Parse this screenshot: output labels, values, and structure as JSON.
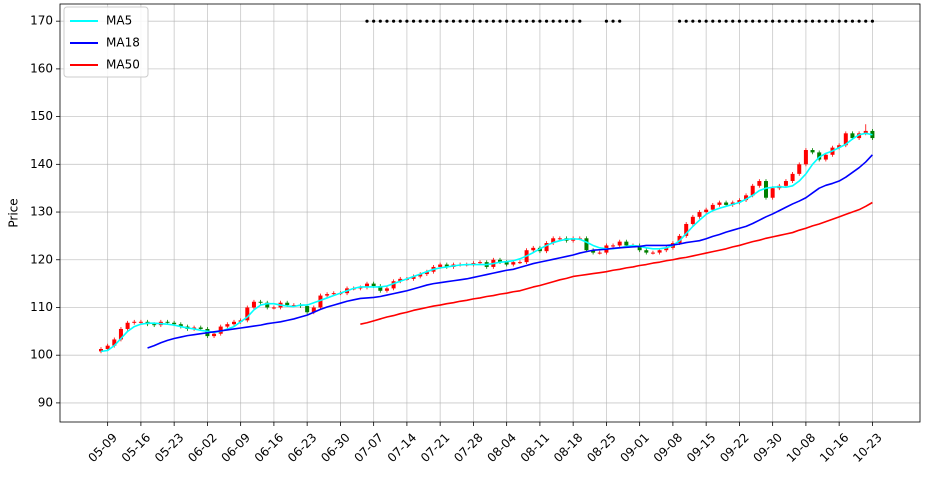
{
  "chart_data": {
    "type": "candlestick",
    "ylabel": "Price",
    "ylim": [
      86,
      173.6
    ],
    "yticks": [
      90,
      100,
      110,
      120,
      130,
      140,
      150,
      160,
      170
    ],
    "grid": true,
    "legend": "upper left",
    "up_color": "#ff0000",
    "down_color": "#008000",
    "categories": [
      null,
      "05-09",
      null,
      null,
      null,
      null,
      "05-16",
      null,
      null,
      null,
      null,
      "05-23",
      null,
      null,
      null,
      null,
      "06-02",
      null,
      null,
      null,
      null,
      "06-09",
      null,
      null,
      null,
      null,
      "06-16",
      null,
      null,
      null,
      null,
      "06-23",
      null,
      null,
      null,
      null,
      "06-30",
      null,
      null,
      null,
      null,
      "07-07",
      null,
      null,
      null,
      null,
      "07-14",
      null,
      null,
      null,
      null,
      "07-21",
      null,
      null,
      null,
      null,
      "07-28",
      null,
      null,
      null,
      null,
      "08-04",
      null,
      null,
      null,
      null,
      "08-11",
      null,
      null,
      null,
      null,
      "08-18",
      null,
      null,
      null,
      null,
      "08-25",
      null,
      null,
      null,
      null,
      "09-01",
      null,
      null,
      null,
      null,
      "09-08",
      null,
      null,
      null,
      null,
      "09-15",
      null,
      null,
      null,
      null,
      "09-22",
      null,
      null,
      null,
      null,
      "09-30",
      null,
      null,
      null,
      null,
      "10-08",
      null,
      null,
      null,
      null,
      "10-16",
      null,
      null,
      null,
      null,
      "10-23"
    ],
    "open": [
      100.8,
      101.3,
      102,
      103.3,
      105.5,
      106.8,
      107,
      107,
      106.5,
      106.3,
      107,
      106.8,
      106.5,
      106,
      105.5,
      105.8,
      105.5,
      104,
      104.5,
      106,
      106.5,
      107,
      107.3,
      110,
      111.2,
      111,
      110,
      110,
      111,
      110.5,
      110.5,
      110.3,
      109,
      110,
      112.5,
      112.8,
      113,
      113,
      114,
      114,
      114.2,
      115,
      114.5,
      113.5,
      114,
      115.5,
      116,
      116,
      116.5,
      117,
      117.5,
      118.5,
      119,
      118.5,
      119,
      119,
      119,
      119.3,
      119.5,
      118.5,
      120,
      119.5,
      119,
      119.5,
      119.5,
      122,
      122.5,
      121.8,
      123.5,
      124.5,
      124.5,
      124,
      124.5,
      124.5,
      122,
      121.5,
      121.5,
      123,
      123,
      123.8,
      123,
      123,
      122,
      121.5,
      121.5,
      122,
      122.5,
      123.5,
      125,
      127.5,
      129,
      130,
      130.5,
      131.5,
      132,
      131.5,
      132,
      132.5,
      133.5,
      135.5,
      136.5,
      133,
      135,
      135.5,
      136.5,
      138,
      140,
      143,
      142.5,
      141,
      142,
      143.5,
      144,
      146.5,
      145.5,
      146.5,
      147
    ],
    "high": [
      101.7,
      102.4,
      103.7,
      105.9,
      107.2,
      107.4,
      107.4,
      107.4,
      106.9,
      107.4,
      107.4,
      107.2,
      106.9,
      106.4,
      106.2,
      106.2,
      105.9,
      104.9,
      106.4,
      106.9,
      107.4,
      107.7,
      110.4,
      111.6,
      111.6,
      111.4,
      110.4,
      111.4,
      111.4,
      110.9,
      110.9,
      110.7,
      110.4,
      112.9,
      113.2,
      113.4,
      113.4,
      114.4,
      114.4,
      114.6,
      115.4,
      115.4,
      114.9,
      114.4,
      115.9,
      116.4,
      116.4,
      116.9,
      117.4,
      117.9,
      118.9,
      119.4,
      119.4,
      119.4,
      119.4,
      119.4,
      119.7,
      119.9,
      119.9,
      120.4,
      120.4,
      119.9,
      119.9,
      119.9,
      122.4,
      122.9,
      122.9,
      123.9,
      124.9,
      124.9,
      124.9,
      124.9,
      124.9,
      124.9,
      122.4,
      121.9,
      123.4,
      123.4,
      124.2,
      124.2,
      123.4,
      123.4,
      122.4,
      121.9,
      122.4,
      122.9,
      123.9,
      125.4,
      127.9,
      129.4,
      130.4,
      130.9,
      131.9,
      132.4,
      132.4,
      132.4,
      132.9,
      133.9,
      135.9,
      136.9,
      136.9,
      135.4,
      135.9,
      136.9,
      138.4,
      140.4,
      143.4,
      143.4,
      142.9,
      142.4,
      143.9,
      144.4,
      146.9,
      146.9,
      146.9,
      148.4,
      147.4
    ],
    "low": [
      100.4,
      100.9,
      101.6,
      102.9,
      105.1,
      106.4,
      106.6,
      106.1,
      105.9,
      105.9,
      106.4,
      106.1,
      105.6,
      105.1,
      105.1,
      105.1,
      103.6,
      103.6,
      104.1,
      105.6,
      106.1,
      106.6,
      106.9,
      109.6,
      110.6,
      109.6,
      109.6,
      109.6,
      110.1,
      110.1,
      109.9,
      108.6,
      108.6,
      109.6,
      112.1,
      112.4,
      112.6,
      112.6,
      113.6,
      113.6,
      113.8,
      114.1,
      113.1,
      113.1,
      113.6,
      115.1,
      115.6,
      115.6,
      116.1,
      116.6,
      117.1,
      118.1,
      118.1,
      118.1,
      118.6,
      118.6,
      118.6,
      118.9,
      118.1,
      118.1,
      119.1,
      118.6,
      118.6,
      119.1,
      119.1,
      121.6,
      121.4,
      121.4,
      123.1,
      124.1,
      123.6,
      123.6,
      124.1,
      121.6,
      121.1,
      121.1,
      121.1,
      122.6,
      122.6,
      122.6,
      122.6,
      121.6,
      121.1,
      121.1,
      121.1,
      121.6,
      122.1,
      123.1,
      124.6,
      127.1,
      128.6,
      129.6,
      130.1,
      131.1,
      131.1,
      131.1,
      131.6,
      132.1,
      133.1,
      135.1,
      132.6,
      132.6,
      134.6,
      135.1,
      136.1,
      137.6,
      139.6,
      142.1,
      140.6,
      140.6,
      141.6,
      143.1,
      143.6,
      145.1,
      145.1,
      146.1,
      145.1
    ],
    "close": [
      101.3,
      102,
      103.3,
      105.5,
      106.8,
      107,
      107,
      106.5,
      106.3,
      107,
      106.8,
      106.5,
      106,
      105.5,
      105.8,
      105.5,
      104,
      104.5,
      106,
      106.5,
      107,
      107.3,
      110,
      111.2,
      111,
      110,
      110,
      111,
      110.5,
      110.5,
      110.3,
      109,
      110,
      112.5,
      112.8,
      113,
      113,
      114,
      114,
      114.2,
      115,
      114.5,
      113.5,
      114,
      115.5,
      116,
      116,
      116.5,
      117,
      117.5,
      118.5,
      119,
      118.5,
      119,
      119,
      119,
      119.3,
      119.5,
      118.5,
      120,
      119.5,
      119,
      119.5,
      119.5,
      122,
      122.5,
      121.8,
      123.5,
      124.5,
      124.5,
      124,
      124.5,
      124.5,
      122,
      121.5,
      121.5,
      123,
      123,
      123.8,
      123,
      123,
      122,
      121.5,
      121.5,
      122,
      122.5,
      123.5,
      125,
      127.5,
      129,
      130,
      130.5,
      131.5,
      132,
      131.5,
      132,
      132.5,
      133.5,
      135.5,
      136.5,
      133,
      135,
      135.5,
      136.5,
      138,
      140,
      143,
      142.5,
      141,
      142,
      143.5,
      144,
      146.5,
      145.5,
      146.5,
      147,
      145.5
    ],
    "series": [
      {
        "name": "MA5",
        "color": "#00ffff",
        "values": [
          100.8,
          101,
          102,
          103.5,
          105,
          106,
          106.5,
          106.7,
          106.7,
          106.6,
          106.5,
          106.3,
          106,
          105.7,
          105.5,
          105.2,
          105,
          104.8,
          105,
          105.5,
          106,
          107,
          108,
          109.5,
          110.5,
          110.8,
          110.8,
          110.5,
          110.3,
          110.2,
          110.5,
          110.5,
          111,
          111.5,
          112,
          112.5,
          113,
          113.5,
          114,
          114.3,
          114.3,
          114.3,
          114.3,
          114.5,
          115,
          115.5,
          116,
          116.5,
          117,
          117.5,
          118,
          118.3,
          118.5,
          118.7,
          118.9,
          119,
          119,
          119,
          119,
          119.2,
          119.5,
          119.6,
          119.8,
          120.2,
          120.8,
          121.5,
          122.3,
          123,
          123.6,
          124,
          124.3,
          124.4,
          124.3,
          123.7,
          123,
          122.5,
          122.3,
          122.3,
          122.5,
          122.8,
          123,
          122.8,
          122.5,
          122.3,
          122.3,
          122.5,
          123,
          124,
          125.5,
          127,
          128.3,
          129.5,
          130.3,
          130.8,
          131.2,
          131.6,
          132,
          132.7,
          133.5,
          134.5,
          135,
          135.2,
          135.3,
          135.2,
          135.5,
          136.5,
          138,
          140,
          141.5,
          142.3,
          142.8,
          143.5,
          144.2,
          145.3,
          146.2,
          146.5,
          146.2
        ]
      },
      {
        "name": "MA18",
        "color": "#0000ff",
        "values": [
          null,
          null,
          null,
          null,
          null,
          null,
          null,
          101.5,
          102,
          102.6,
          103.1,
          103.5,
          103.8,
          104.1,
          104.3,
          104.5,
          104.7,
          104.9,
          105.1,
          105.3,
          105.5,
          105.7,
          105.9,
          106.1,
          106.3,
          106.6,
          106.8,
          107,
          107.3,
          107.6,
          108,
          108.4,
          109,
          109.6,
          110.1,
          110.5,
          110.9,
          111.3,
          111.6,
          111.9,
          112,
          112.1,
          112.3,
          112.6,
          112.9,
          113.2,
          113.5,
          113.9,
          114.3,
          114.7,
          115,
          115.2,
          115.4,
          115.6,
          115.8,
          116,
          116.3,
          116.6,
          116.9,
          117.2,
          117.5,
          117.8,
          118,
          118.4,
          118.8,
          119.2,
          119.5,
          119.8,
          120.1,
          120.4,
          120.7,
          121,
          121.4,
          121.7,
          122,
          122.1,
          122.2,
          122.4,
          122.5,
          122.6,
          122.7,
          122.8,
          123,
          123,
          123,
          123,
          123.1,
          123.3,
          123.6,
          123.8,
          124,
          124.4,
          124.9,
          125.3,
          125.8,
          126.2,
          126.6,
          127,
          127.6,
          128.3,
          129,
          129.6,
          130.3,
          131,
          131.7,
          132.3,
          133,
          134,
          135,
          135.6,
          136,
          136.5,
          137.3,
          138.3,
          139.3,
          140.5,
          142
        ]
      },
      {
        "name": "MA50",
        "color": "#ff0000",
        "values": [
          null,
          null,
          null,
          null,
          null,
          null,
          null,
          null,
          null,
          null,
          null,
          null,
          null,
          null,
          null,
          null,
          null,
          null,
          null,
          null,
          null,
          null,
          null,
          null,
          null,
          null,
          null,
          null,
          null,
          null,
          null,
          null,
          null,
          null,
          null,
          null,
          null,
          null,
          null,
          106.5,
          106.8,
          107.2,
          107.6,
          108,
          108.3,
          108.7,
          109,
          109.4,
          109.7,
          110,
          110.3,
          110.5,
          110.8,
          111,
          111.3,
          111.5,
          111.8,
          112,
          112.3,
          112.5,
          112.8,
          113,
          113.3,
          113.5,
          113.9,
          114.3,
          114.6,
          115,
          115.4,
          115.8,
          116.1,
          116.5,
          116.7,
          116.9,
          117.1,
          117.3,
          117.5,
          117.8,
          118,
          118.3,
          118.5,
          118.8,
          119,
          119.3,
          119.5,
          119.8,
          120,
          120.3,
          120.5,
          120.8,
          121.1,
          121.4,
          121.7,
          122,
          122.3,
          122.7,
          123,
          123.4,
          123.8,
          124.1,
          124.5,
          124.8,
          125.1,
          125.4,
          125.7,
          126.2,
          126.6,
          127.1,
          127.5,
          128,
          128.5,
          129,
          129.5,
          130,
          130.5,
          131.2,
          132
        ]
      }
    ],
    "markers": {
      "color": "#000000",
      "values": [
        null,
        null,
        null,
        null,
        null,
        null,
        null,
        null,
        null,
        null,
        null,
        null,
        null,
        null,
        null,
        null,
        null,
        null,
        null,
        null,
        null,
        null,
        null,
        null,
        null,
        null,
        null,
        null,
        null,
        null,
        null,
        null,
        null,
        null,
        null,
        null,
        null,
        null,
        null,
        null,
        170,
        170,
        170,
        170,
        170,
        170,
        170,
        170,
        170,
        170,
        170,
        170,
        170,
        170,
        170,
        170,
        170,
        170,
        170,
        170,
        170,
        170,
        170,
        170,
        170,
        170,
        170,
        170,
        170,
        170,
        170,
        170,
        170,
        null,
        null,
        null,
        170,
        170,
        170,
        null,
        null,
        null,
        null,
        null,
        null,
        null,
        null,
        170,
        170,
        170,
        170,
        170,
        170,
        170,
        170,
        170,
        170,
        170,
        170,
        170,
        170,
        170,
        170,
        170,
        170,
        170,
        170,
        170,
        170,
        170,
        170,
        170,
        170,
        170,
        170,
        170,
        170
      ]
    }
  }
}
